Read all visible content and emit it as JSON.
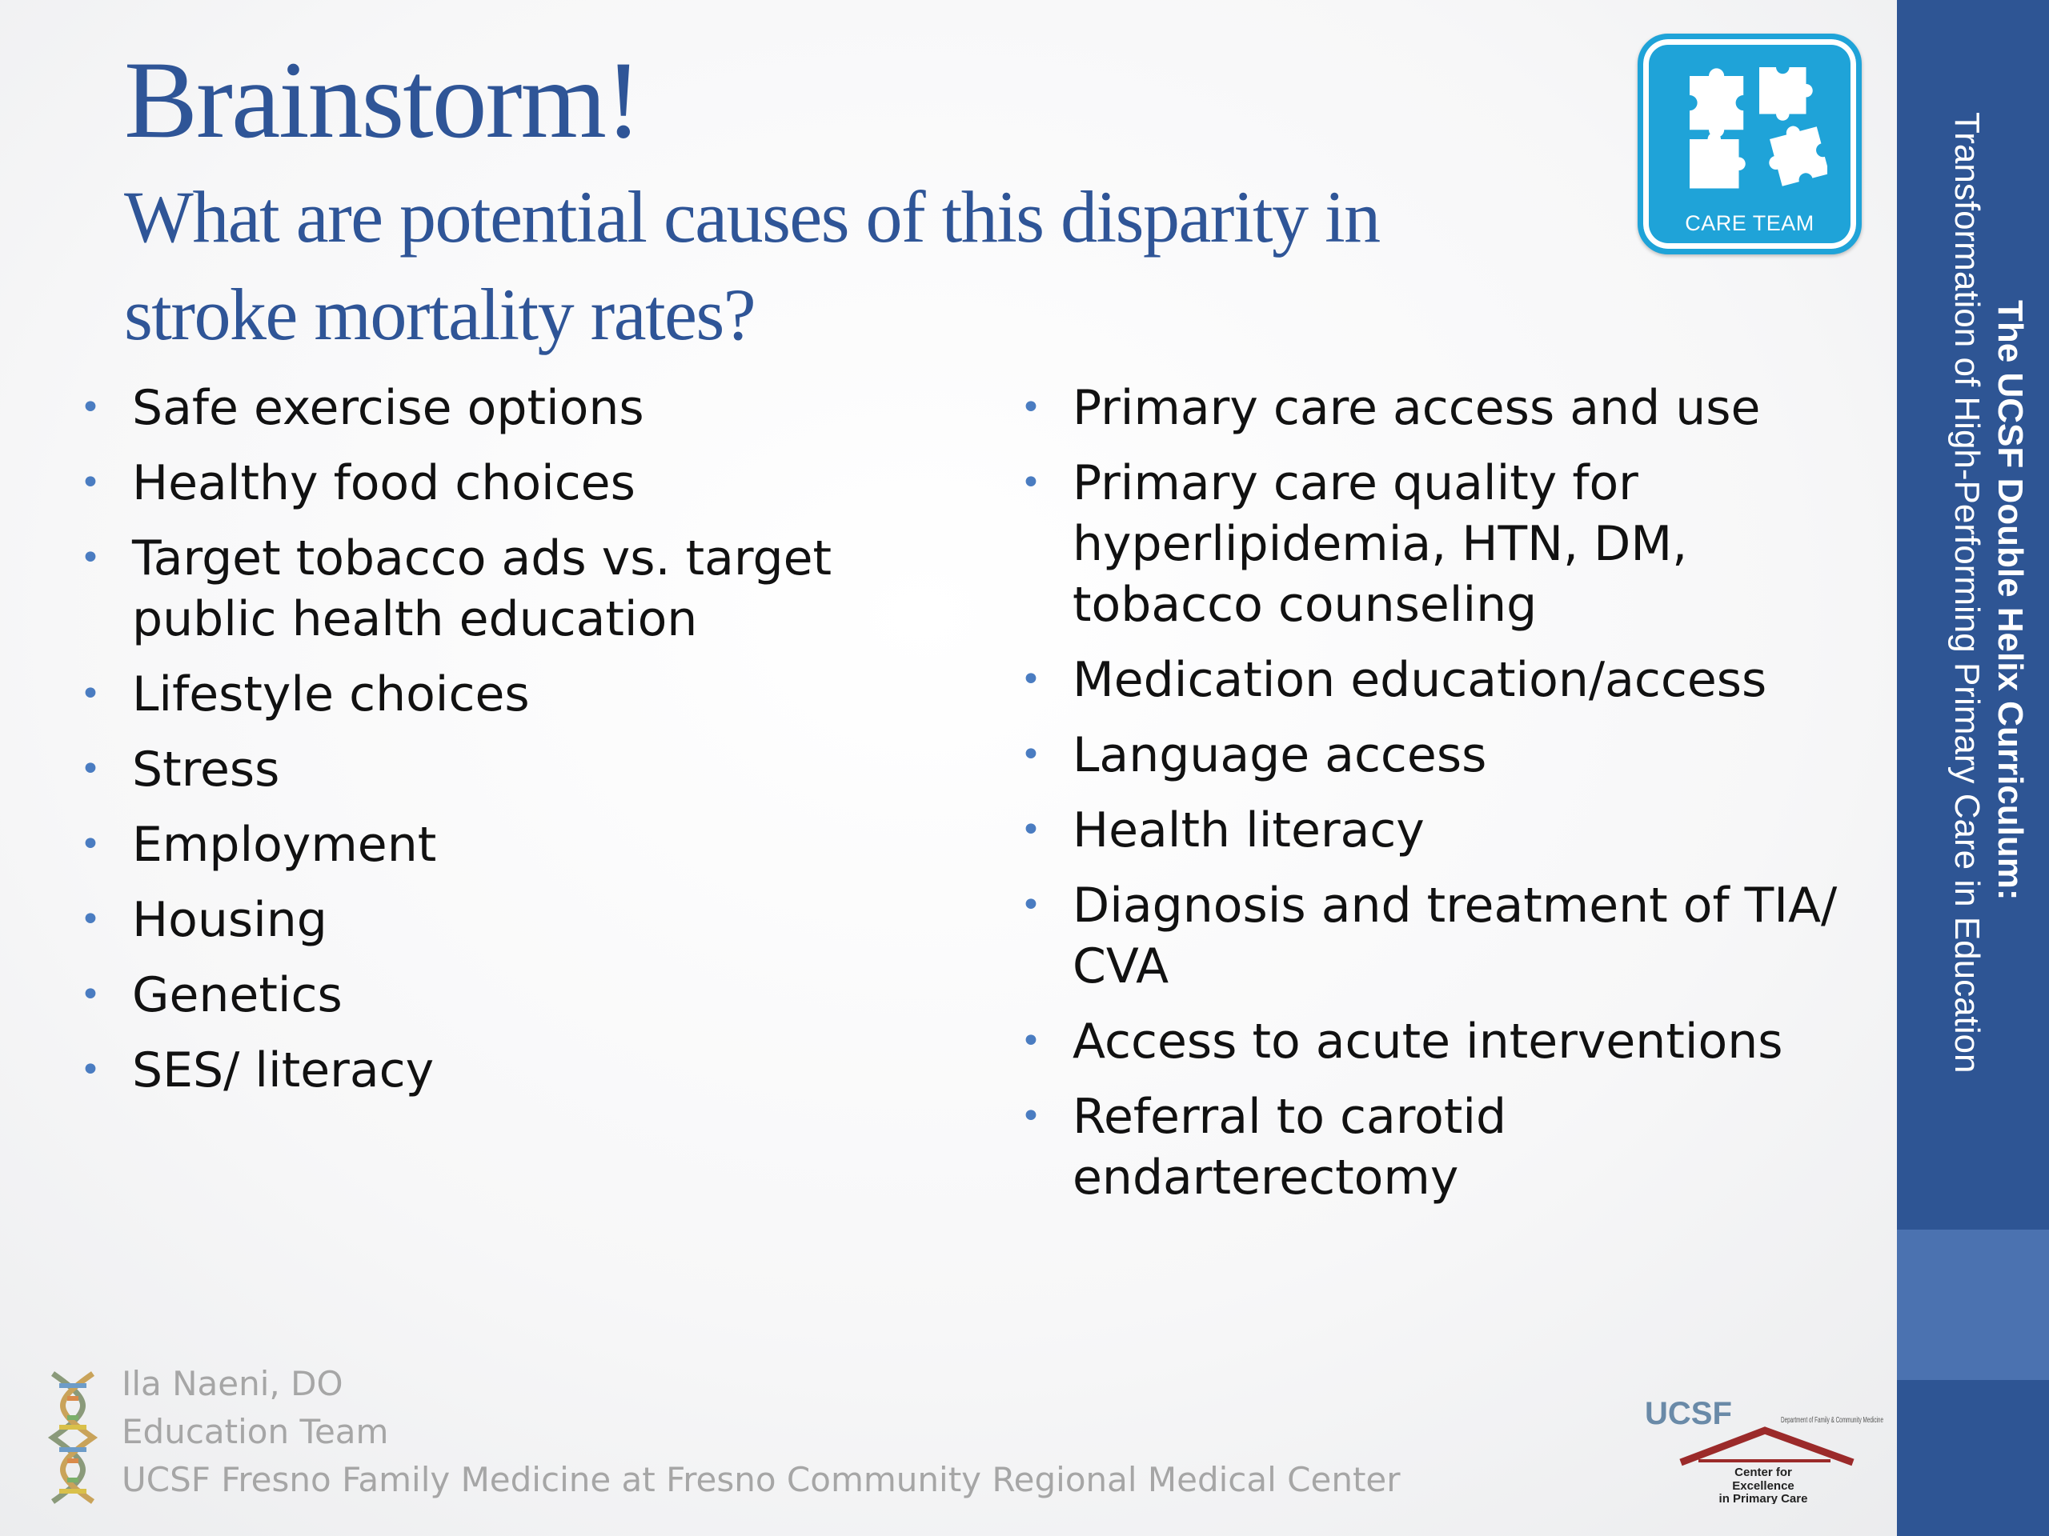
{
  "slide": {
    "title": "Brainstorm!",
    "subtitle": "What are potential causes of this disparity in stroke mortality rates?"
  },
  "badge": {
    "label": "CARE TEAM",
    "icon": "puzzle-pieces-icon",
    "color": "#1fa3d8"
  },
  "left_list": [
    "Safe exercise options",
    "Healthy food choices",
    "Target tobacco ads vs. target public health education",
    "Lifestyle choices",
    "Stress",
    "Employment",
    "Housing",
    "Genetics",
    "SES/ literacy"
  ],
  "right_list": [
    "Primary care access and use",
    "Primary care quality for hyperlipidemia, HTN, DM, tobacco counseling",
    "Medication education/access",
    "Language access",
    "Health literacy",
    "Diagnosis and treatment of TIA/ CVA",
    "Access to acute interventions",
    "Referral to carotid endarterectomy"
  ],
  "sidebar": {
    "line1": "The UCSF Double Helix Curriculum:",
    "line2": "Transformation of High-Performing Primary Care in Education",
    "color": "#2e5594"
  },
  "footer": {
    "author": "Ila Naeni, DO",
    "team": "Education Team",
    "institution": "UCSF Fresno Family Medicine at Fresno Community Regional Medical Center"
  },
  "ucsf_logo": {
    "wordmark": "UCSF",
    "dept": "Department of Family & Community Medicine",
    "center_line1": "Center for",
    "center_line2": "Excellence",
    "center_line3": "in Primary Care"
  },
  "colors": {
    "heading": "#2f5597",
    "bullet": "#4a7cc1",
    "footer_text": "#a6a6a6"
  }
}
